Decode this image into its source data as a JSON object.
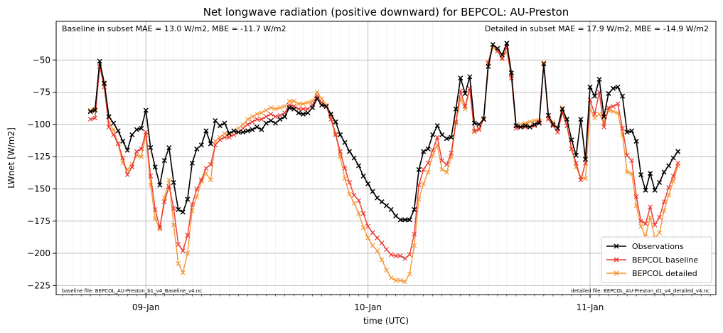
{
  "chart_data": {
    "type": "line",
    "title": "Net longwave radiation (positive downward) for BEPCOL: AU-Preston",
    "xlabel": "time (UTC)",
    "ylabel": "LWnet [W/m2]",
    "xlim_hours": [
      -9.7,
      61.6
    ],
    "ylim": [
      -232,
      -20
    ],
    "yticks": [
      -50,
      -75,
      -100,
      -125,
      -150,
      -175,
      -200,
      -225
    ],
    "ytick_labels": [
      "−50",
      "−75",
      "−100",
      "−125",
      "−150",
      "−175",
      "−200",
      "−225"
    ],
    "xticks": [
      {
        "label": "09-Jan",
        "hour": 0
      },
      {
        "label": "10-Jan",
        "hour": 24
      },
      {
        "label": "11-Jan",
        "hour": 48
      }
    ],
    "grid": true,
    "legend_position": "lower right",
    "annotations": {
      "baseline_stats": "Baseline in subset MAE = 13.0 W/m2, MBE = -11.7 W/m2",
      "detailed_stats": "Detailed in subset MAE = 17.9 W/m2, MBE = -14.9 W/m2",
      "baseline_file": "baseline file: BEPCOL_AU-Preston_b1_v4_Baseline_v4.nc",
      "detailed_file": "detailed file: BEPCOL_AU-Preston_d1_v4_detailed_v4.nc"
    },
    "x_start_hour": -6,
    "x_step_hours": 0.5,
    "series": [
      {
        "name": "Observations",
        "color": "#000000",
        "values": [
          -90,
          -89,
          -51,
          -68,
          -94,
          -99,
          -105,
          -113,
          -120,
          -108,
          -104,
          -103,
          -89,
          -118,
          -133,
          -147,
          -128,
          -118,
          -145,
          -166,
          -168,
          -158,
          -130,
          -119,
          -116,
          -105,
          -115,
          -97,
          -101,
          -99,
          -107,
          -105,
          -106,
          -106,
          -105,
          -104,
          -102,
          -104,
          -99,
          -97,
          -99,
          -96,
          -94,
          -87,
          -88,
          -91,
          -92,
          -91,
          -87,
          -80,
          -85,
          -86,
          -92,
          -98,
          -108,
          -114,
          -121,
          -126,
          -132,
          -140,
          -146,
          -152,
          -157,
          -160,
          -163,
          -166,
          -171,
          -174,
          -174,
          -174,
          -166,
          -135,
          -121,
          -119,
          -108,
          -101,
          -108,
          -111,
          -110,
          -88,
          -64,
          -76,
          -63,
          -99,
          -100,
          -96,
          -55,
          -38,
          -41,
          -46,
          -37,
          -60,
          -101,
          -102,
          -101,
          -102,
          -100,
          -99,
          -53,
          -93,
          -100,
          -103,
          -88,
          -96,
          -112,
          -124,
          -96,
          -127,
          -71,
          -78,
          -65,
          -94,
          -76,
          -72,
          -71,
          -78,
          -106,
          -105,
          -113,
          -139,
          -151,
          -138,
          -151,
          -145,
          -137,
          -132,
          -126,
          -121
        ]
      },
      {
        "name": "BEPCOL baseline",
        "color": "#e8302a",
        "values": [
          -96,
          -95,
          -55,
          -71,
          -102,
          -108,
          -115,
          -126,
          -139,
          -133,
          -121,
          -119,
          -106,
          -140,
          -166,
          -180,
          -160,
          -148,
          -165,
          -193,
          -198,
          -186,
          -162,
          -150,
          -143,
          -134,
          -131,
          -116,
          -112,
          -110,
          -110,
          -108,
          -106,
          -103,
          -100,
          -98,
          -96,
          -96,
          -94,
          -92,
          -94,
          -93,
          -91,
          -85,
          -86,
          -88,
          -88,
          -88,
          -85,
          -78,
          -83,
          -86,
          -96,
          -108,
          -121,
          -134,
          -145,
          -155,
          -159,
          -169,
          -179,
          -184,
          -188,
          -192,
          -197,
          -201,
          -202,
          -202,
          -204,
          -201,
          -185,
          -147,
          -135,
          -130,
          -120,
          -110,
          -128,
          -131,
          -122,
          -98,
          -74,
          -86,
          -72,
          -105,
          -104,
          -96,
          -52,
          -38,
          -43,
          -49,
          -40,
          -64,
          -103,
          -102,
          -102,
          -102,
          -101,
          -98,
          -53,
          -96,
          -101,
          -106,
          -91,
          -101,
          -119,
          -130,
          -143,
          -130,
          -81,
          -92,
          -75,
          -102,
          -87,
          -86,
          -84,
          -103,
          -124,
          -128,
          -156,
          -175,
          -177,
          -164,
          -178,
          -172,
          -160,
          -149,
          -140,
          -130
        ]
      },
      {
        "name": "BEPCOL detailed",
        "color": "#f5922a",
        "values": [
          -89,
          -88,
          -53,
          -69,
          -99,
          -104,
          -115,
          -130,
          -135,
          -131,
          -124,
          -125,
          -108,
          -147,
          -173,
          -181,
          -157,
          -143,
          -178,
          -208,
          -215,
          -200,
          -167,
          -156,
          -144,
          -138,
          -143,
          -113,
          -110,
          -107,
          -108,
          -105,
          -103,
          -100,
          -96,
          -94,
          -92,
          -91,
          -89,
          -87,
          -88,
          -87,
          -86,
          -82,
          -82,
          -84,
          -84,
          -83,
          -82,
          -75,
          -80,
          -85,
          -94,
          -107,
          -125,
          -142,
          -154,
          -161,
          -169,
          -180,
          -188,
          -194,
          -198,
          -205,
          -213,
          -219,
          -221,
          -221,
          -222,
          -216,
          -194,
          -158,
          -146,
          -137,
          -124,
          -116,
          -135,
          -137,
          -125,
          -99,
          -80,
          -88,
          -72,
          -106,
          -103,
          -95,
          -53,
          -40,
          -43,
          -48,
          -44,
          -62,
          -101,
          -100,
          -99,
          -98,
          -97,
          -97,
          -52,
          -95,
          -98,
          -103,
          -87,
          -101,
          -119,
          -133,
          -141,
          -142,
          -88,
          -95,
          -92,
          -98,
          -89,
          -90,
          -91,
          -108,
          -137,
          -138,
          -163,
          -179,
          -187,
          -172,
          -188,
          -184,
          -167,
          -155,
          -144,
          -132
        ]
      }
    ]
  }
}
